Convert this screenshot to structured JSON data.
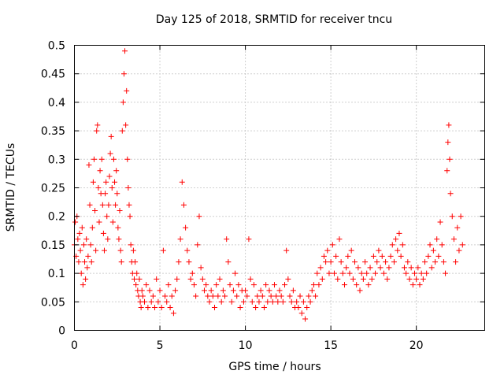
{
  "chart_data": {
    "type": "scatter",
    "title": "Day 125 of 2018, SRMTID for receiver tncu",
    "xlabel": "GPS time / hours",
    "ylabel": "SRMTID / TECUs",
    "xlim": [
      0,
      24
    ],
    "ylim": [
      0,
      0.5
    ],
    "x_ticks": [
      0,
      5,
      10,
      15,
      20
    ],
    "x_tick_labels": [
      "0",
      "5",
      "10",
      "15",
      "20"
    ],
    "y_ticks": [
      0,
      0.05,
      0.1,
      0.15,
      0.2,
      0.25,
      0.3,
      0.35,
      0.4,
      0.45,
      0.5
    ],
    "y_tick_labels": [
      "0",
      "0.05",
      "0.1",
      "0.15",
      "0.2",
      "0.25",
      "0.3",
      "0.35",
      "0.4",
      "0.45",
      "0.5"
    ],
    "grid": true,
    "marker": "+",
    "series": [
      {
        "name": "SRMTID",
        "color": "#ff0000",
        "points": [
          [
            0.0,
            0.15
          ],
          [
            0.05,
            0.19
          ],
          [
            0.1,
            0.13
          ],
          [
            0.15,
            0.2
          ],
          [
            0.2,
            0.16
          ],
          [
            0.25,
            0.12
          ],
          [
            0.3,
            0.17
          ],
          [
            0.35,
            0.14
          ],
          [
            0.4,
            0.1
          ],
          [
            0.45,
            0.18
          ],
          [
            0.5,
            0.08
          ],
          [
            0.55,
            0.15
          ],
          [
            0.6,
            0.12
          ],
          [
            0.65,
            0.09
          ],
          [
            0.7,
            0.16
          ],
          [
            0.75,
            0.11
          ],
          [
            0.8,
            0.13
          ],
          [
            0.85,
            0.29
          ],
          [
            0.9,
            0.22
          ],
          [
            0.95,
            0.15
          ],
          [
            1.0,
            0.12
          ],
          [
            1.05,
            0.18
          ],
          [
            1.1,
            0.26
          ],
          [
            1.15,
            0.3
          ],
          [
            1.2,
            0.21
          ],
          [
            1.25,
            0.14
          ],
          [
            1.3,
            0.35
          ],
          [
            1.35,
            0.36
          ],
          [
            1.4,
            0.25
          ],
          [
            1.45,
            0.19
          ],
          [
            1.5,
            0.28
          ],
          [
            1.55,
            0.24
          ],
          [
            1.6,
            0.3
          ],
          [
            1.65,
            0.22
          ],
          [
            1.7,
            0.17
          ],
          [
            1.75,
            0.14
          ],
          [
            1.8,
            0.24
          ],
          [
            1.85,
            0.26
          ],
          [
            1.9,
            0.2
          ],
          [
            1.95,
            0.16
          ],
          [
            2.0,
            0.22
          ],
          [
            2.05,
            0.27
          ],
          [
            2.1,
            0.31
          ],
          [
            2.15,
            0.34
          ],
          [
            2.2,
            0.25
          ],
          [
            2.25,
            0.19
          ],
          [
            2.3,
            0.3
          ],
          [
            2.35,
            0.26
          ],
          [
            2.4,
            0.22
          ],
          [
            2.45,
            0.28
          ],
          [
            2.5,
            0.24
          ],
          [
            2.55,
            0.18
          ],
          [
            2.6,
            0.16
          ],
          [
            2.65,
            0.21
          ],
          [
            2.7,
            0.14
          ],
          [
            2.75,
            0.12
          ],
          [
            2.8,
            0.35
          ],
          [
            2.85,
            0.4
          ],
          [
            2.9,
            0.45
          ],
          [
            2.95,
            0.49
          ],
          [
            3.0,
            0.36
          ],
          [
            3.05,
            0.42
          ],
          [
            3.1,
            0.3
          ],
          [
            3.15,
            0.25
          ],
          [
            3.2,
            0.22
          ],
          [
            3.25,
            0.2
          ],
          [
            3.3,
            0.15
          ],
          [
            3.35,
            0.12
          ],
          [
            3.4,
            0.1
          ],
          [
            3.45,
            0.14
          ],
          [
            3.5,
            0.09
          ],
          [
            3.55,
            0.12
          ],
          [
            3.6,
            0.08
          ],
          [
            3.65,
            0.1
          ],
          [
            3.7,
            0.07
          ],
          [
            3.75,
            0.06
          ],
          [
            3.8,
            0.09
          ],
          [
            3.85,
            0.05
          ],
          [
            3.9,
            0.04
          ],
          [
            3.95,
            0.07
          ],
          [
            4.0,
            0.06
          ],
          [
            4.1,
            0.05
          ],
          [
            4.2,
            0.08
          ],
          [
            4.3,
            0.04
          ],
          [
            4.4,
            0.07
          ],
          [
            4.5,
            0.05
          ],
          [
            4.6,
            0.06
          ],
          [
            4.7,
            0.04
          ],
          [
            4.8,
            0.09
          ],
          [
            4.9,
            0.05
          ],
          [
            5.0,
            0.07
          ],
          [
            5.1,
            0.04
          ],
          [
            5.2,
            0.14
          ],
          [
            5.3,
            0.06
          ],
          [
            5.4,
            0.05
          ],
          [
            5.5,
            0.08
          ],
          [
            5.6,
            0.04
          ],
          [
            5.7,
            0.06
          ],
          [
            5.8,
            0.03
          ],
          [
            5.9,
            0.07
          ],
          [
            6.0,
            0.09
          ],
          [
            6.1,
            0.12
          ],
          [
            6.2,
            0.16
          ],
          [
            6.3,
            0.26
          ],
          [
            6.4,
            0.22
          ],
          [
            6.5,
            0.18
          ],
          [
            6.6,
            0.14
          ],
          [
            6.7,
            0.12
          ],
          [
            6.8,
            0.09
          ],
          [
            6.9,
            0.1
          ],
          [
            7.0,
            0.08
          ],
          [
            7.1,
            0.06
          ],
          [
            7.2,
            0.15
          ],
          [
            7.3,
            0.2
          ],
          [
            7.4,
            0.11
          ],
          [
            7.5,
            0.09
          ],
          [
            7.6,
            0.07
          ],
          [
            7.7,
            0.08
          ],
          [
            7.8,
            0.06
          ],
          [
            7.9,
            0.05
          ],
          [
            8.0,
            0.07
          ],
          [
            8.1,
            0.06
          ],
          [
            8.2,
            0.04
          ],
          [
            8.3,
            0.08
          ],
          [
            8.4,
            0.06
          ],
          [
            8.5,
            0.09
          ],
          [
            8.6,
            0.05
          ],
          [
            8.7,
            0.07
          ],
          [
            8.8,
            0.06
          ],
          [
            8.9,
            0.16
          ],
          [
            9.0,
            0.12
          ],
          [
            9.1,
            0.08
          ],
          [
            9.2,
            0.05
          ],
          [
            9.3,
            0.07
          ],
          [
            9.4,
            0.1
          ],
          [
            9.5,
            0.06
          ],
          [
            9.6,
            0.08
          ],
          [
            9.7,
            0.04
          ],
          [
            9.8,
            0.07
          ],
          [
            9.9,
            0.05
          ],
          [
            10.0,
            0.07
          ],
          [
            10.1,
            0.06
          ],
          [
            10.2,
            0.16
          ],
          [
            10.3,
            0.09
          ],
          [
            10.4,
            0.05
          ],
          [
            10.5,
            0.08
          ],
          [
            10.6,
            0.04
          ],
          [
            10.7,
            0.06
          ],
          [
            10.8,
            0.05
          ],
          [
            10.9,
            0.07
          ],
          [
            11.0,
            0.06
          ],
          [
            11.1,
            0.04
          ],
          [
            11.2,
            0.08
          ],
          [
            11.3,
            0.05
          ],
          [
            11.4,
            0.07
          ],
          [
            11.5,
            0.06
          ],
          [
            11.6,
            0.05
          ],
          [
            11.7,
            0.08
          ],
          [
            11.8,
            0.06
          ],
          [
            11.9,
            0.05
          ],
          [
            12.0,
            0.07
          ],
          [
            12.1,
            0.06
          ],
          [
            12.2,
            0.05
          ],
          [
            12.3,
            0.08
          ],
          [
            12.4,
            0.14
          ],
          [
            12.5,
            0.09
          ],
          [
            12.6,
            0.06
          ],
          [
            12.7,
            0.05
          ],
          [
            12.8,
            0.07
          ],
          [
            12.9,
            0.04
          ],
          [
            13.0,
            0.05
          ],
          [
            13.1,
            0.04
          ],
          [
            13.2,
            0.06
          ],
          [
            13.3,
            0.03
          ],
          [
            13.4,
            0.05
          ],
          [
            13.5,
            0.02
          ],
          [
            13.6,
            0.04
          ],
          [
            13.7,
            0.06
          ],
          [
            13.8,
            0.05
          ],
          [
            13.9,
            0.07
          ],
          [
            14.0,
            0.08
          ],
          [
            14.1,
            0.06
          ],
          [
            14.2,
            0.1
          ],
          [
            14.3,
            0.08
          ],
          [
            14.4,
            0.11
          ],
          [
            14.5,
            0.09
          ],
          [
            14.6,
            0.13
          ],
          [
            14.7,
            0.12
          ],
          [
            14.8,
            0.14
          ],
          [
            14.9,
            0.1
          ],
          [
            15.0,
            0.12
          ],
          [
            15.1,
            0.15
          ],
          [
            15.2,
            0.1
          ],
          [
            15.3,
            0.13
          ],
          [
            15.4,
            0.09
          ],
          [
            15.5,
            0.16
          ],
          [
            15.6,
            0.12
          ],
          [
            15.7,
            0.1
          ],
          [
            15.8,
            0.08
          ],
          [
            15.9,
            0.11
          ],
          [
            16.0,
            0.13
          ],
          [
            16.1,
            0.1
          ],
          [
            16.2,
            0.14
          ],
          [
            16.3,
            0.09
          ],
          [
            16.4,
            0.12
          ],
          [
            16.5,
            0.08
          ],
          [
            16.6,
            0.11
          ],
          [
            16.7,
            0.07
          ],
          [
            16.8,
            0.1
          ],
          [
            16.9,
            0.09
          ],
          [
            17.0,
            0.12
          ],
          [
            17.1,
            0.1
          ],
          [
            17.2,
            0.08
          ],
          [
            17.3,
            0.11
          ],
          [
            17.4,
            0.09
          ],
          [
            17.5,
            0.13
          ],
          [
            17.6,
            0.1
          ],
          [
            17.7,
            0.12
          ],
          [
            17.8,
            0.14
          ],
          [
            17.9,
            0.11
          ],
          [
            18.0,
            0.13
          ],
          [
            18.1,
            0.1
          ],
          [
            18.2,
            0.12
          ],
          [
            18.3,
            0.09
          ],
          [
            18.4,
            0.11
          ],
          [
            18.5,
            0.13
          ],
          [
            18.6,
            0.15
          ],
          [
            18.7,
            0.12
          ],
          [
            18.8,
            0.16
          ],
          [
            18.9,
            0.14
          ],
          [
            19.0,
            0.17
          ],
          [
            19.1,
            0.13
          ],
          [
            19.2,
            0.15
          ],
          [
            19.3,
            0.11
          ],
          [
            19.4,
            0.1
          ],
          [
            19.5,
            0.12
          ],
          [
            19.6,
            0.09
          ],
          [
            19.7,
            0.11
          ],
          [
            19.8,
            0.08
          ],
          [
            19.9,
            0.1
          ],
          [
            20.0,
            0.09
          ],
          [
            20.1,
            0.11
          ],
          [
            20.2,
            0.08
          ],
          [
            20.3,
            0.1
          ],
          [
            20.4,
            0.09
          ],
          [
            20.5,
            0.12
          ],
          [
            20.6,
            0.1
          ],
          [
            20.7,
            0.13
          ],
          [
            20.8,
            0.15
          ],
          [
            20.9,
            0.11
          ],
          [
            21.0,
            0.14
          ],
          [
            21.1,
            0.12
          ],
          [
            21.2,
            0.16
          ],
          [
            21.3,
            0.13
          ],
          [
            21.4,
            0.19
          ],
          [
            21.5,
            0.15
          ],
          [
            21.6,
            0.12
          ],
          [
            21.7,
            0.1
          ],
          [
            21.8,
            0.28
          ],
          [
            21.85,
            0.33
          ],
          [
            21.9,
            0.36
          ],
          [
            21.95,
            0.3
          ],
          [
            22.0,
            0.24
          ],
          [
            22.1,
            0.2
          ],
          [
            22.2,
            0.16
          ],
          [
            22.3,
            0.12
          ],
          [
            22.4,
            0.18
          ],
          [
            22.5,
            0.14
          ],
          [
            22.6,
            0.2
          ],
          [
            22.7,
            0.15
          ]
        ]
      }
    ]
  }
}
